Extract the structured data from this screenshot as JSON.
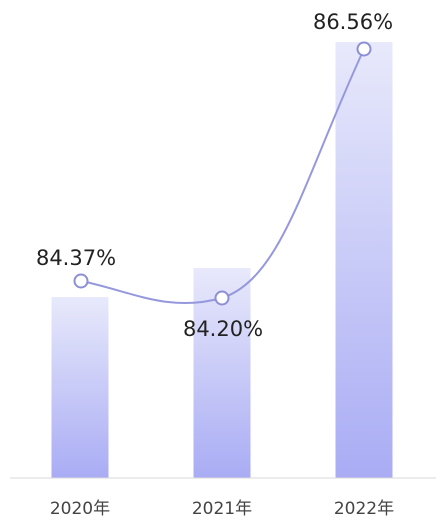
{
  "chart_data": {
    "type": "bar",
    "categories": [
      "2020年",
      "2021年",
      "2022年"
    ],
    "values": [
      84.37,
      84.2,
      86.56
    ],
    "line_values": [
      84.37,
      84.2,
      86.56
    ],
    "data_labels": [
      "84.37%",
      "84.20%",
      "86.56%"
    ],
    "title": "",
    "xlabel": "",
    "ylabel": "",
    "grid": false,
    "legend": "none",
    "colors": {
      "bar_top": "#e8e9fb",
      "bar_bottom": "#a9acf4",
      "line": "#9698dd",
      "marker_fill": "#ffffff",
      "marker_stroke": "#8c8fd6",
      "axis": "#d9d9d9",
      "label": "#222222",
      "tick_label": "#444444"
    }
  }
}
